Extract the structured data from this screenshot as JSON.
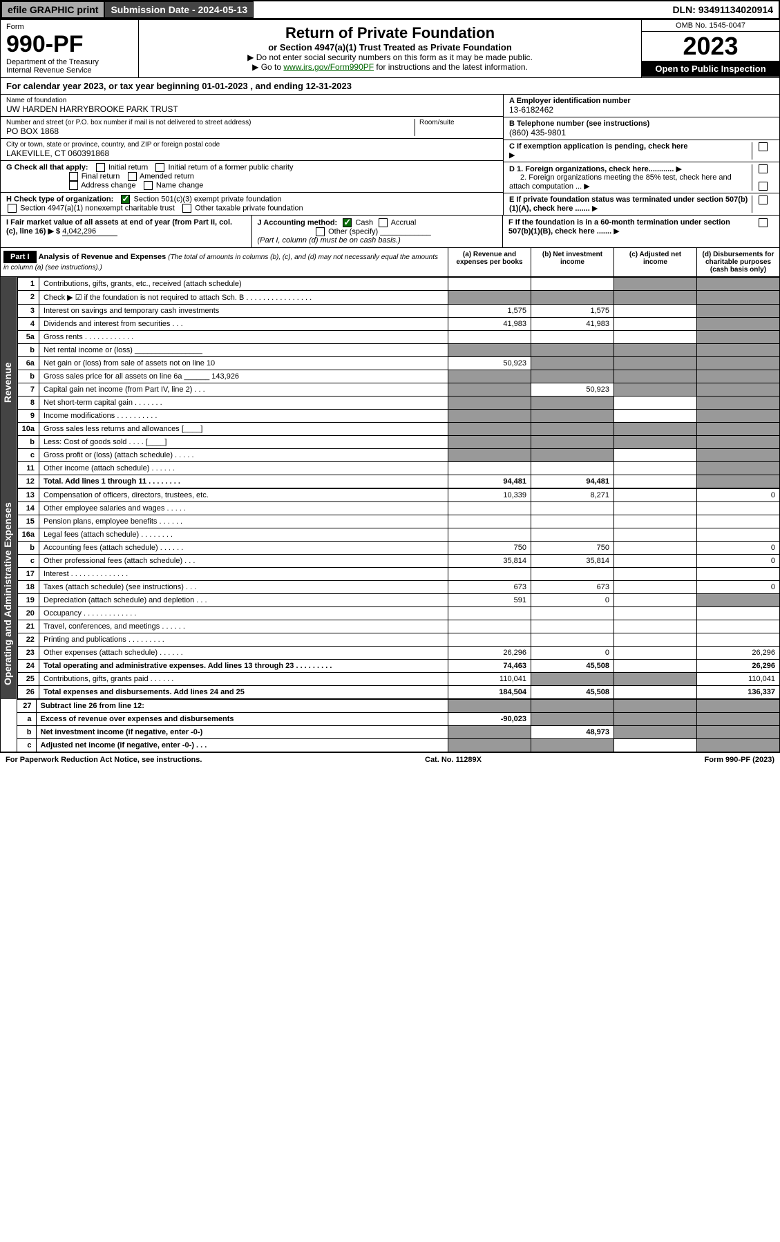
{
  "top": {
    "efile": "efile GRAPHIC print",
    "subdate_label": "Submission Date - 2024-05-13",
    "dln": "DLN: 93491134020914"
  },
  "header": {
    "form_label": "Form",
    "form_no": "990-PF",
    "dept": "Department of the Treasury",
    "irs": "Internal Revenue Service",
    "title": "Return of Private Foundation",
    "subtitle": "or Section 4947(a)(1) Trust Treated as Private Foundation",
    "note1": "▶ Do not enter social security numbers on this form as it may be made public.",
    "note2_pre": "▶ Go to ",
    "note2_link": "www.irs.gov/Form990PF",
    "note2_post": " for instructions and the latest information.",
    "omb": "OMB No. 1545-0047",
    "year": "2023",
    "open": "Open to Public Inspection"
  },
  "calyear": "For calendar year 2023, or tax year beginning 01-01-2023                    , and ending 12-31-2023",
  "entity": {
    "name_label": "Name of foundation",
    "name": "UW HARDEN HARRYBROOKE PARK TRUST",
    "addr_label": "Number and street (or P.O. box number if mail is not delivered to street address)",
    "room_label": "Room/suite",
    "addr": "PO BOX 1868",
    "city_label": "City or town, state or province, country, and ZIP or foreign postal code",
    "city": "LAKEVILLE, CT  060391868",
    "a_label": "A Employer identification number",
    "ein": "13-6182462",
    "b_label": "B Telephone number (see instructions)",
    "phone": "(860) 435-9801",
    "c_label": "C If exemption application is pending, check here",
    "d1": "D 1. Foreign organizations, check here............",
    "d2": "2. Foreign organizations meeting the 85% test, check here and attach computation ...",
    "e_label": "E  If private foundation status was terminated under section 507(b)(1)(A), check here .......",
    "f_label": "F  If the foundation is in a 60-month termination under section 507(b)(1)(B), check here .......",
    "g_label": "G Check all that apply:",
    "g_opts": [
      "Initial return",
      "Initial return of a former public charity",
      "Final return",
      "Amended return",
      "Address change",
      "Name change"
    ],
    "h_label": "H Check type of organization:",
    "h_opt1": "Section 501(c)(3) exempt private foundation",
    "h_opt2": "Section 4947(a)(1) nonexempt charitable trust",
    "h_opt3": "Other taxable private foundation",
    "i_label": "I Fair market value of all assets at end of year (from Part II, col. (c), line 16) ▶ $",
    "i_val": "4,042,296",
    "j_label": "J Accounting method:",
    "j_cash": "Cash",
    "j_accrual": "Accrual",
    "j_other": "Other (specify)",
    "j_note": "(Part I, column (d) must be on cash basis.)"
  },
  "part1": {
    "label": "Part I",
    "title": "Analysis of Revenue and Expenses",
    "title_note": " (The total of amounts in columns (b), (c), and (d) may not necessarily equal the amounts in column (a) (see instructions).)",
    "col_a": "(a)  Revenue and expenses per books",
    "col_b": "(b)  Net investment income",
    "col_c": "(c)  Adjusted net income",
    "col_d": "(d)  Disbursements for charitable purposes (cash basis only)"
  },
  "side": {
    "revenue": "Revenue",
    "expenses": "Operating and Administrative Expenses"
  },
  "rows": [
    {
      "n": "1",
      "d": "shaded",
      "a": "",
      "b": "",
      "c": "shaded"
    },
    {
      "n": "2",
      "d": "shaded",
      "a": "shaded",
      "b": "shaded",
      "c": "shaded"
    },
    {
      "n": "3",
      "d": "shaded",
      "a": "1,575",
      "b": "1,575",
      "c": ""
    },
    {
      "n": "4",
      "d": "shaded",
      "a": "41,983",
      "b": "41,983",
      "c": ""
    },
    {
      "n": "5a",
      "d": "shaded",
      "a": "",
      "b": "",
      "c": ""
    },
    {
      "n": "b",
      "d": "shaded",
      "a": "shaded",
      "b": "shaded",
      "c": "shaded"
    },
    {
      "n": "6a",
      "d": "shaded",
      "a": "50,923",
      "b": "shaded",
      "c": "shaded"
    },
    {
      "n": "b",
      "d": "shaded",
      "a": "shaded",
      "b": "shaded",
      "c": "shaded"
    },
    {
      "n": "7",
      "d": "shaded",
      "a": "shaded",
      "b": "50,923",
      "c": "shaded"
    },
    {
      "n": "8",
      "d": "shaded",
      "a": "shaded",
      "b": "shaded",
      "c": ""
    },
    {
      "n": "9",
      "d": "shaded",
      "a": "shaded",
      "b": "shaded",
      "c": ""
    },
    {
      "n": "10a",
      "d": "shaded",
      "a": "shaded",
      "b": "shaded",
      "c": "shaded"
    },
    {
      "n": "b",
      "d": "shaded",
      "a": "shaded",
      "b": "shaded",
      "c": "shaded"
    },
    {
      "n": "c",
      "d": "shaded",
      "a": "shaded",
      "b": "shaded",
      "c": ""
    },
    {
      "n": "11",
      "d": "shaded",
      "a": "",
      "b": "",
      "c": ""
    },
    {
      "n": "12",
      "d": "shaded",
      "a": "94,481",
      "b": "94,481",
      "c": "",
      "bold": true
    }
  ],
  "exp_rows": [
    {
      "n": "13",
      "d": "0",
      "a": "10,339",
      "b": "8,271",
      "c": ""
    },
    {
      "n": "14",
      "d": "",
      "a": "",
      "b": "",
      "c": ""
    },
    {
      "n": "15",
      "d": "",
      "a": "",
      "b": "",
      "c": ""
    },
    {
      "n": "16a",
      "d": "",
      "a": "",
      "b": "",
      "c": ""
    },
    {
      "n": "b",
      "d": "0",
      "a": "750",
      "b": "750",
      "c": ""
    },
    {
      "n": "c",
      "d": "0",
      "a": "35,814",
      "b": "35,814",
      "c": ""
    },
    {
      "n": "17",
      "d": "",
      "a": "",
      "b": "",
      "c": ""
    },
    {
      "n": "18",
      "d": "0",
      "a": "673",
      "b": "673",
      "c": ""
    },
    {
      "n": "19",
      "d": "shaded",
      "a": "591",
      "b": "0",
      "c": ""
    },
    {
      "n": "20",
      "d": "",
      "a": "",
      "b": "",
      "c": ""
    },
    {
      "n": "21",
      "d": "",
      "a": "",
      "b": "",
      "c": ""
    },
    {
      "n": "22",
      "d": "",
      "a": "",
      "b": "",
      "c": ""
    },
    {
      "n": "23",
      "d": "26,296",
      "a": "26,296",
      "b": "0",
      "c": ""
    },
    {
      "n": "24",
      "d": "26,296",
      "a": "74,463",
      "b": "45,508",
      "c": "",
      "bold": true
    },
    {
      "n": "25",
      "d": "110,041",
      "a": "110,041",
      "b": "shaded",
      "c": "shaded"
    },
    {
      "n": "26",
      "d": "136,337",
      "a": "184,504",
      "b": "45,508",
      "c": "",
      "bold": true
    }
  ],
  "final_rows": [
    {
      "n": "27",
      "d": "shaded",
      "a": "shaded",
      "b": "shaded",
      "c": "shaded",
      "bold": false
    },
    {
      "n": "a",
      "d": "shaded",
      "a": "-90,023",
      "b": "shaded",
      "c": "shaded",
      "bold": true
    },
    {
      "n": "b",
      "d": "shaded",
      "a": "shaded",
      "b": "48,973",
      "c": "shaded",
      "bold": true
    },
    {
      "n": "c",
      "d": "shaded",
      "a": "shaded",
      "b": "shaded",
      "c": "",
      "bold": true
    }
  ],
  "footer": {
    "left": "For Paperwork Reduction Act Notice, see instructions.",
    "mid": "Cat. No. 11289X",
    "right": "Form 990-PF (2023)"
  }
}
